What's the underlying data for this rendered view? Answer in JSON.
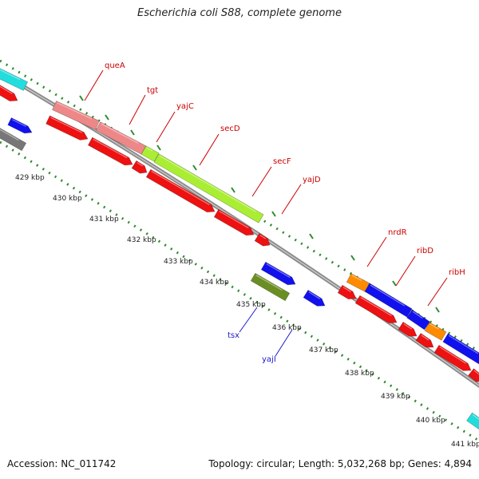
{
  "title": "Escherichia coli S88, complete genome",
  "footer": {
    "accession": "Accession: NC_011742",
    "topology": "Topology: circular; Length: 5,032,268 bp; Genes: 4,894"
  },
  "scale": {
    "unit": "kbp",
    "tick_labels": [
      "429 kbp",
      "430 kbp",
      "431 kbp",
      "432 kbp",
      "433 kbp",
      "434 kbp",
      "435 kbp",
      "436 kbp",
      "437 kbp",
      "438 kbp",
      "439 kbp",
      "440 kbp",
      "441 kbp"
    ]
  },
  "colors": {
    "backbone": "#8c8c8c",
    "ruler_dots": "#2e8b2e",
    "label_red": "#cc0000",
    "label_blue": "#1a1acc",
    "feature_red": "#ee1111",
    "feature_pink": "#ee8888",
    "feature_lime": "#aaee33",
    "feature_blue": "#1111ee",
    "feature_orange": "#ff8c00",
    "feature_cyan": "#22dddd",
    "feature_olive": "#6b8e23",
    "feature_gray": "#777777"
  },
  "genes": [
    {
      "label": "queA",
      "color": "red"
    },
    {
      "label": "tgt",
      "color": "red"
    },
    {
      "label": "yajC",
      "color": "red"
    },
    {
      "label": "secD",
      "color": "red"
    },
    {
      "label": "secF",
      "color": "red"
    },
    {
      "label": "yajD",
      "color": "red"
    },
    {
      "label": "nrdR",
      "color": "red"
    },
    {
      "label": "ribD",
      "color": "red"
    },
    {
      "label": "ribH",
      "color": "red"
    },
    {
      "label": "tsx",
      "color": "blue"
    },
    {
      "label": "yajI",
      "color": "blue"
    }
  ]
}
